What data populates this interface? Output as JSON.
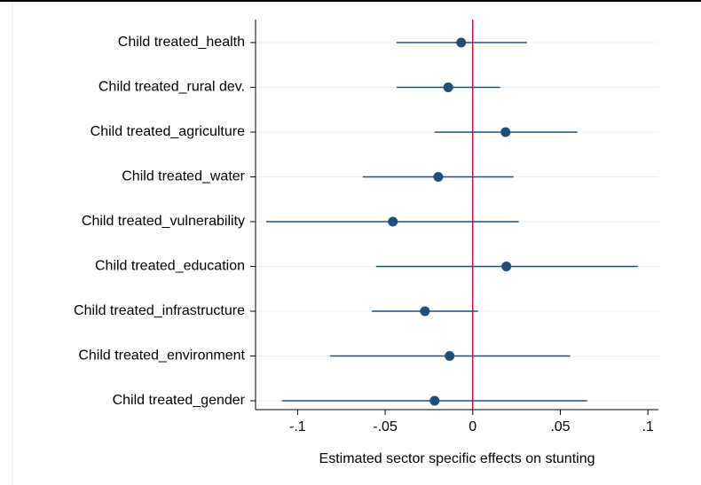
{
  "chart_data": {
    "type": "coefplot",
    "x_label": "Estimated sector specific effects on stunting",
    "categories": [
      "Child treated_health",
      "Child treated_rural dev.",
      "Child treated_agriculture",
      "Child treated_water",
      "Child treated_vulnerability",
      "Child treated_education",
      "Child treated_infrastructure",
      "Child treated_environment",
      "Child treated_gender"
    ],
    "estimate": [
      -0.0066,
      -0.014,
      0.0187,
      -0.0197,
      -0.0456,
      0.0192,
      -0.0273,
      -0.0132,
      -0.0218
    ],
    "lower": [
      -0.0435,
      -0.0435,
      -0.0218,
      -0.0628,
      -0.118,
      -0.0552,
      -0.0577,
      -0.0815,
      -0.1089
    ],
    "upper": [
      0.031,
      0.0157,
      0.0597,
      0.0233,
      0.0263,
      0.0942,
      0.003,
      0.0557,
      0.0653
    ],
    "color": "#1f4e79",
    "xline": 0,
    "xline_color": "#c0134a",
    "xlim": [
      -0.124,
      0.106
    ],
    "xticks": [
      {
        "value": -0.1,
        "label": "-.1"
      },
      {
        "value": -0.05,
        "label": "-.05"
      },
      0,
      {
        "value": 0.05,
        "label": ".05"
      },
      {
        "value": 0.1,
        "label": ".1"
      }
    ],
    "grid": true
  }
}
